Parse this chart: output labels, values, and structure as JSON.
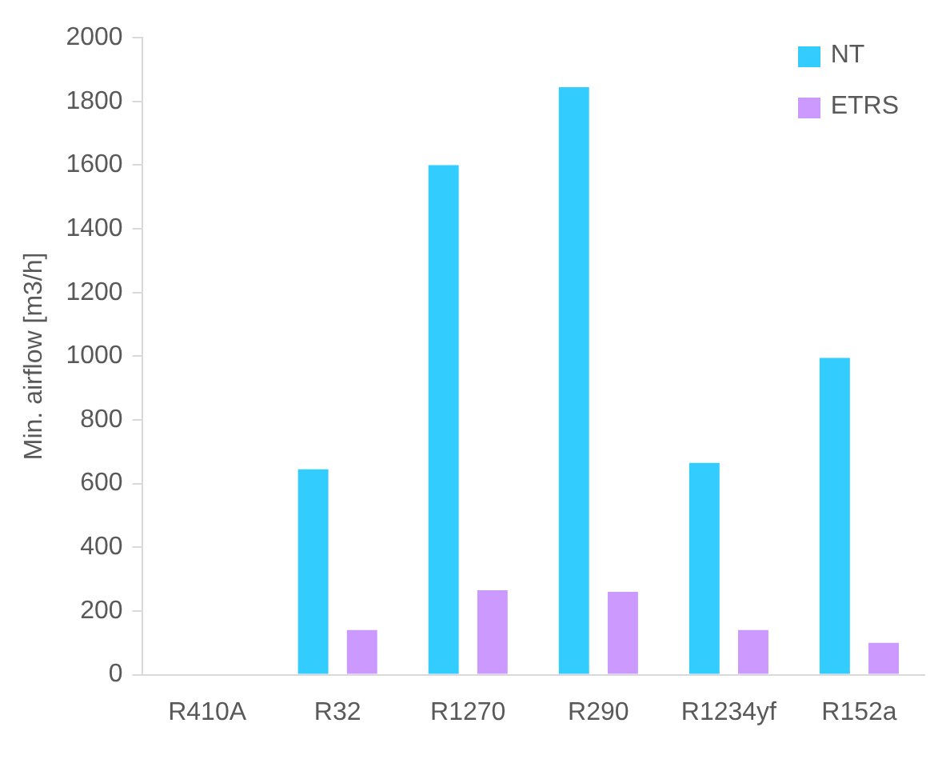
{
  "chart_data": {
    "type": "bar",
    "ylabel": "Min. airflow [m3/h]",
    "categories": [
      "R410A",
      "R32",
      "R1270",
      "R290",
      "R1234yf",
      "R152a"
    ],
    "series": [
      {
        "name": "NT",
        "color": "#33ccff",
        "values": [
          null,
          645,
          1600,
          1845,
          665,
          995
        ]
      },
      {
        "name": "ETRS",
        "color": "#cc99ff",
        "values": [
          null,
          140,
          265,
          260,
          140,
          100
        ]
      }
    ],
    "ylim": [
      0,
      2000
    ],
    "yticks": [
      0,
      200,
      400,
      600,
      800,
      1000,
      1200,
      1400,
      1600,
      1800,
      2000
    ],
    "grid": false,
    "legend": "top right"
  }
}
